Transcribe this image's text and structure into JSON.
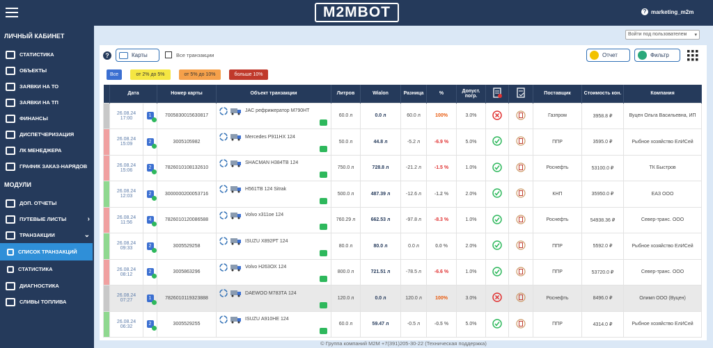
{
  "header": {
    "logo": "M2MBOT",
    "user": "marketing_m2m"
  },
  "sidebar": {
    "sections": [
      {
        "title": "ЛИЧНЫЙ КАБИНЕТ",
        "items": [
          {
            "label": "СТАТИСТИКА"
          },
          {
            "label": "ОБЪЕКТЫ"
          },
          {
            "label": "ЗАЯВКИ НА ТО"
          },
          {
            "label": "ЗАЯВКИ НА ТП"
          },
          {
            "label": "ФИНАНСЫ"
          },
          {
            "label": "ДИСПЕТЧЕРИЗАЦИЯ"
          },
          {
            "label": "ЛК МЕНЕДЖЕРА"
          },
          {
            "label": "ГРАФИК ЗАКАЗ-НАРЯДОВ"
          }
        ]
      },
      {
        "title": "МОДУЛИ",
        "items": [
          {
            "label": "ДОП. ОТЧЕТЫ"
          },
          {
            "label": "ПУТЕВЫЕ ЛИСТЫ",
            "arrow": "right"
          },
          {
            "label": "ТРАНЗАКЦИИ",
            "arrow": "down"
          },
          {
            "label": "СПИСОК ТРАНЗАКЦИЙ",
            "level": 2,
            "active": true
          },
          {
            "label": "СТАТИСТИКА",
            "level": 2
          },
          {
            "label": "ДИАГНОСТИКА"
          },
          {
            "label": "СЛИВЫ ТОПЛИВА"
          }
        ]
      }
    ]
  },
  "toolbar": {
    "login_as": "Войти под пользователем",
    "cards": "Карты",
    "all": "Все транзакции",
    "report": "Отчет",
    "filter": "Фильтр"
  },
  "chips": [
    {
      "label": "Все",
      "color": "#3b6fd1",
      "text_color": "#ffffff"
    },
    {
      "label": "от 2% до 5%",
      "color": "#f5e642",
      "text_color": "#333333"
    },
    {
      "label": "от 5% до 10%",
      "color": "#f5a04a",
      "text_color": "#333333"
    },
    {
      "label": "больше 10%",
      "color": "#c0392b",
      "text_color": "#ffffff"
    }
  ],
  "table": {
    "columns": [
      "Дата",
      "Номер карты",
      "Объект транзакции",
      "Литров",
      "Wialon",
      "Разница",
      "%",
      "Допуст. погр.",
      "Поставщик",
      "Стоимость кон.",
      "Компания"
    ],
    "rows": [
      {
        "date": "26.08.24",
        "time": "17:00",
        "badge": "1",
        "card": "7005830015630817",
        "object": "JAC рефрижератор М790НТ",
        "liters": "60.0 л",
        "wialon": "0.0 л",
        "diff": "60.0 л",
        "pct": "100%",
        "tol": "3.0%",
        "supplier": "Газпром",
        "cost": "3958.8 ₽",
        "company": "Вуцен Ольга Васильевна, ИП",
        "marker_color": "#c8c8c8",
        "pct_color": "#e8590c",
        "icon": "cross"
      },
      {
        "date": "26.08.24",
        "time": "15:09",
        "badge": "2",
        "card": "3005105982",
        "object": "Mercedes P911HX 124",
        "liters": "50.0 л",
        "wialon": "44.8 л",
        "diff": "-5.2 л",
        "pct": "-6.9 %",
        "tol": "5.0%",
        "supplier": "ППР",
        "cost": "3595.0 ₽",
        "company": "Рыбное хозяйство ЕлИСей",
        "marker_color": "#f0a0a0",
        "pct_color": "#e03131",
        "icon": "check"
      },
      {
        "date": "26.08.24",
        "time": "15:06",
        "badge": "2",
        "card": "7826010108132610",
        "object": "SHACMAN Н384ТВ 124",
        "liters": "750.0 л",
        "wialon": "728.8 л",
        "diff": "-21.2 л",
        "pct": "-1.5 %",
        "tol": "1.0%",
        "supplier": "Роснефть",
        "cost": "53100.0 ₽",
        "company": "ТК Быстров",
        "marker_color": "#f0a0a0",
        "pct_color": "#e03131",
        "icon": "check"
      },
      {
        "date": "26.08.24",
        "time": "12:03",
        "badge": "2",
        "card": "3000000200053716",
        "object": "Н561ТВ 124 Sitrak",
        "liters": "500.0 л",
        "wialon": "487.39 л",
        "diff": "-12.6 л",
        "pct": "-1.2 %",
        "tol": "2.0%",
        "supplier": "КНП",
        "cost": "35950.0 ₽",
        "company": "ЕАЗ ООО",
        "marker_color": "#8fd88f",
        "pct_color": "#777777",
        "icon": "check"
      },
      {
        "date": "26.08.24",
        "time": "11:56",
        "badge": "4",
        "card": "7826010120086588",
        "object": "Volvo х311ое 124",
        "liters": "760.29 л",
        "wialon": "662.53 л",
        "diff": "-97.8 л",
        "pct": "-8.3 %",
        "tol": "1.0%",
        "supplier": "Роснефть",
        "cost": "54938.36 ₽",
        "company": "Север-транс. ООО",
        "marker_color": "#f0a0a0",
        "pct_color": "#e03131",
        "icon": "check"
      },
      {
        "date": "26.08.24",
        "time": "09:33",
        "badge": "2",
        "card": "3005529258",
        "object": "ISUZU Х892РТ 124",
        "liters": "80.0 л",
        "wialon": "80.0 л",
        "diff": "0.0 л",
        "pct": "0.0 %",
        "tol": "2.0%",
        "supplier": "ППР",
        "cost": "5592.0 ₽",
        "company": "Рыбное хозяйство ЕлИСей",
        "marker_color": "#8fd88f",
        "pct_color": "#777777",
        "icon": "check"
      },
      {
        "date": "26.08.24",
        "time": "08:12",
        "badge": "2",
        "card": "3005863296",
        "object": "Volvo Н263ОХ 124",
        "liters": "800.0 л",
        "wialon": "721.51 л",
        "diff": "-78.5 л",
        "pct": "-6.6 %",
        "tol": "1.0%",
        "supplier": "ППР",
        "cost": "53720.0 ₽",
        "company": "Север-транс. ООО",
        "marker_color": "#f0a0a0",
        "pct_color": "#e03131",
        "icon": "check"
      },
      {
        "date": "26.08.24",
        "time": "07:27",
        "badge": "1",
        "card": "7826010119323888",
        "object": "DAEWOO М783ТА 124",
        "liters": "120.0 л",
        "wialon": "0.0 л",
        "diff": "120.0 л",
        "pct": "100%",
        "tol": "3.0%",
        "supplier": "Роснефть",
        "cost": "8496.0 ₽",
        "company": "Олимп ООО (Вуцен)",
        "marker_color": "#c8c8c8",
        "pct_color": "#e8590c",
        "icon": "cross",
        "row_color": "#e9e9e9"
      },
      {
        "date": "26.08.24",
        "time": "06:32",
        "badge": "2",
        "card": "3005529255",
        "object": "ISUZU А910НЕ 124",
        "liters": "60.0 л",
        "wialon": "59.47 л",
        "diff": "-0.5 л",
        "pct": "-0.5 %",
        "tol": "5.0%",
        "supplier": "ППР",
        "cost": "4314.0 ₽",
        "company": "Рыбное хозяйство ЕлИСей",
        "marker_color": "#8fd88f",
        "pct_color": "#777777",
        "icon": "check"
      }
    ]
  },
  "footer": "© Группа компаний М2М +7(391)205-30-22 (Техническая поддержка)"
}
